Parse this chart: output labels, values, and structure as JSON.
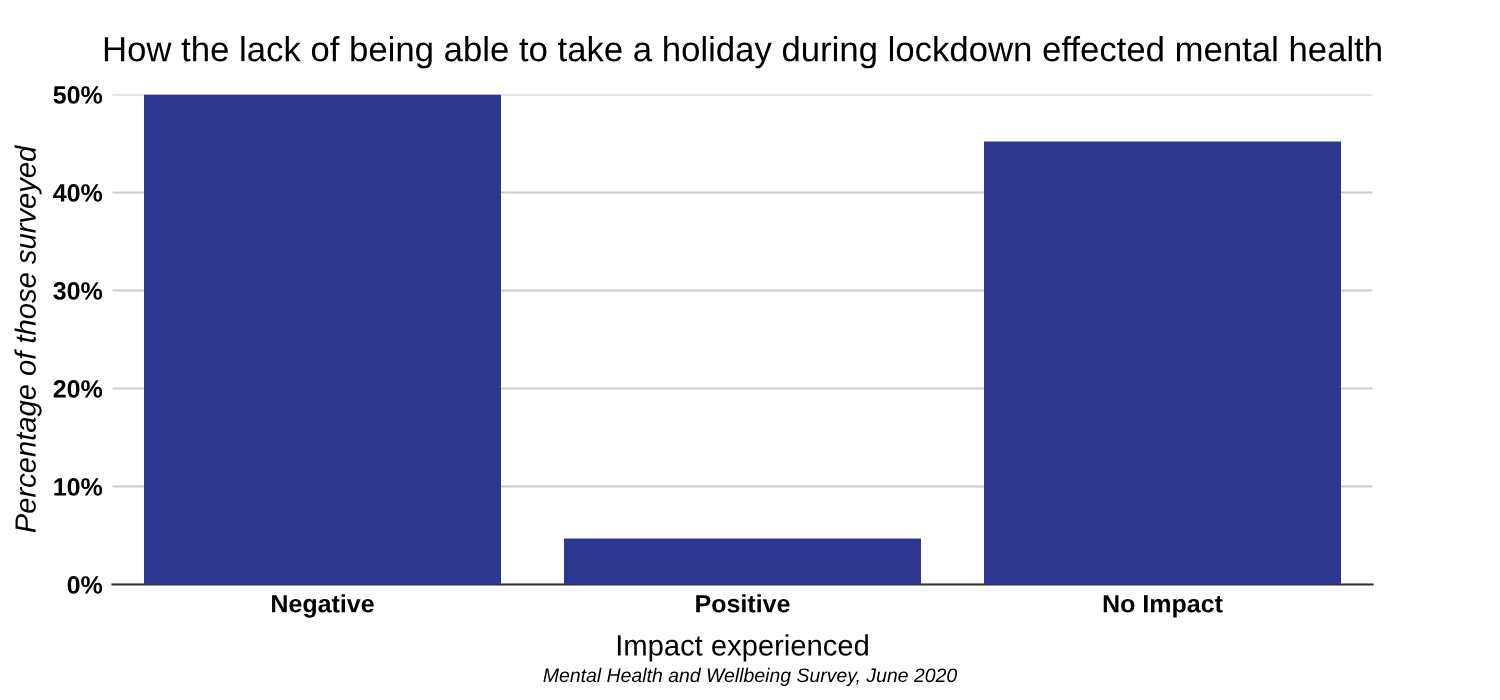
{
  "chart_data": {
    "type": "bar",
    "title": "How the lack of being able to take a holiday during lockdown effected mental health",
    "xlabel": "Impact experienced",
    "ylabel": "Percentage of those surveyed",
    "categories": [
      "Negative",
      "Positive",
      "No Impact"
    ],
    "values": [
      50,
      4.7,
      45.2
    ],
    "color": "#2e3790",
    "ylim": [
      0,
      50
    ],
    "yticks": [
      {
        "value": 0,
        "label": "0%"
      },
      {
        "value": 10,
        "label": "10%"
      },
      {
        "value": 20,
        "label": "20%"
      },
      {
        "value": 30,
        "label": "30%"
      },
      {
        "value": 40,
        "label": "40%"
      },
      {
        "value": 50,
        "label": "50%"
      }
    ],
    "grid": "y",
    "legend": false,
    "annotations": [
      "Mental Health and Wellbeing Survey, June 2020"
    ]
  }
}
